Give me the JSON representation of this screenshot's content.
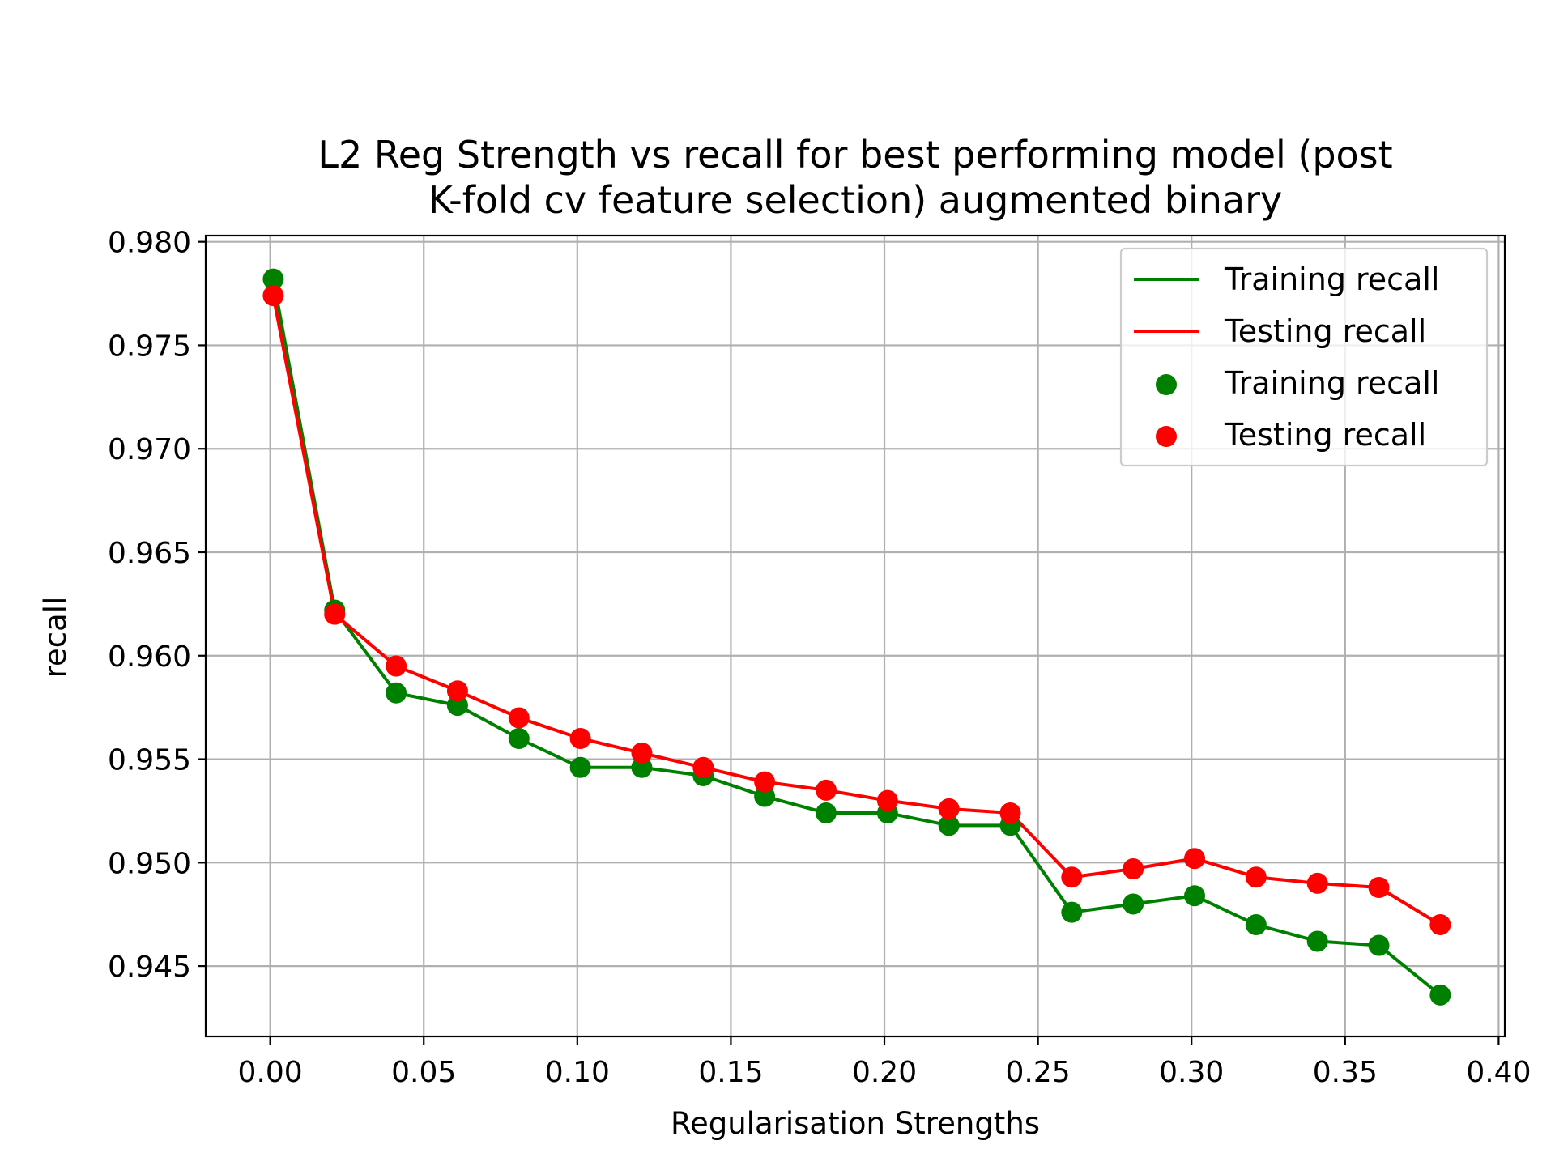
{
  "chart_data": {
    "type": "line",
    "title_lines": [
      "L2 Reg Strength vs recall for best performing model (post",
      "K-fold cv feature selection) augmented binary"
    ],
    "xlabel": "Regularisation Strengths",
    "ylabel": "recall",
    "xlim": [
      -0.021,
      0.402
    ],
    "ylim": [
      0.9416,
      0.9803
    ],
    "xticks": [
      0.0,
      0.05,
      0.1,
      0.15,
      0.2,
      0.25,
      0.3,
      0.35,
      0.4
    ],
    "xtick_labels": [
      "0.00",
      "0.05",
      "0.10",
      "0.15",
      "0.20",
      "0.25",
      "0.30",
      "0.35",
      "0.40"
    ],
    "yticks": [
      0.945,
      0.95,
      0.955,
      0.96,
      0.965,
      0.97,
      0.975,
      0.98
    ],
    "ytick_labels": [
      "0.945",
      "0.950",
      "0.955",
      "0.960",
      "0.965",
      "0.970",
      "0.975",
      "0.980"
    ],
    "grid": true,
    "legend_position": "top-right",
    "legend": [
      {
        "label": "Training recall",
        "kind": "line",
        "color": "#008000"
      },
      {
        "label": "Testing recall",
        "kind": "line",
        "color": "#ff0000"
      },
      {
        "label": "Training recall",
        "kind": "marker",
        "color": "#008000"
      },
      {
        "label": "Testing recall",
        "kind": "marker",
        "color": "#ff0000"
      }
    ],
    "x": [
      0.001,
      0.021,
      0.041,
      0.061,
      0.081,
      0.101,
      0.121,
      0.141,
      0.161,
      0.181,
      0.201,
      0.221,
      0.241,
      0.261,
      0.281,
      0.301,
      0.321,
      0.341,
      0.361,
      0.381
    ],
    "series": [
      {
        "name": "Training recall",
        "color": "#008000",
        "values": [
          0.9782,
          0.9622,
          0.9582,
          0.9576,
          0.956,
          0.9546,
          0.9546,
          0.9542,
          0.9532,
          0.9524,
          0.9524,
          0.9518,
          0.9518,
          0.9476,
          0.948,
          0.9484,
          0.947,
          0.9462,
          0.946,
          0.9436
        ]
      },
      {
        "name": "Testing recall",
        "color": "#ff0000",
        "values": [
          0.9774,
          0.962,
          0.9595,
          0.9583,
          0.957,
          0.956,
          0.9553,
          0.9546,
          0.9539,
          0.9535,
          0.953,
          0.9526,
          0.9524,
          0.9493,
          0.9497,
          0.9502,
          0.9493,
          0.949,
          0.9488,
          0.947
        ]
      }
    ]
  }
}
